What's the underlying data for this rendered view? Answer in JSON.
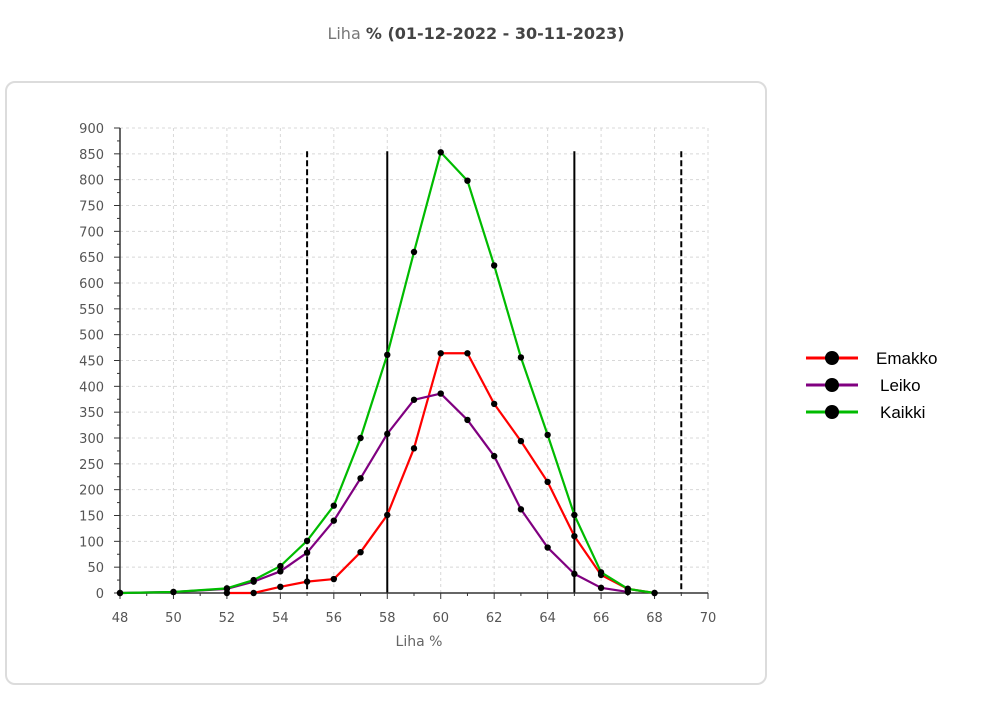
{
  "header": {
    "title_prefix": "Liha",
    "title_rest": "% (01-12-2022 - 30-11-2023)"
  },
  "chart_data": {
    "type": "line",
    "xlabel": "Liha %",
    "ylabel": "",
    "xlim": [
      48,
      70
    ],
    "ylim": [
      0,
      900
    ],
    "x_ticks": [
      48,
      50,
      52,
      54,
      56,
      58,
      60,
      62,
      64,
      66,
      68,
      70
    ],
    "y_ticks": [
      0,
      50,
      100,
      150,
      200,
      250,
      300,
      350,
      400,
      450,
      500,
      550,
      600,
      650,
      700,
      750,
      800,
      850,
      900
    ],
    "grid": true,
    "legend_position": "right",
    "reference_lines": [
      {
        "x": 55,
        "style": "dashed"
      },
      {
        "x": 58,
        "style": "solid"
      },
      {
        "x": 65,
        "style": "solid"
      },
      {
        "x": 69,
        "style": "dashed"
      }
    ],
    "series": [
      {
        "name": "Emakko",
        "color": "#ff0000",
        "x": [
          52,
          53,
          54,
          55,
          56,
          57,
          58,
          59,
          60,
          61,
          62,
          63,
          64,
          65,
          66,
          67,
          68
        ],
        "values": [
          0,
          0,
          12,
          22,
          27,
          79,
          151,
          280,
          464,
          464,
          366,
          294,
          215,
          110,
          35,
          8,
          0
        ]
      },
      {
        "name": "Leiko",
        "color": "#800080",
        "x": [
          48,
          50,
          52,
          53,
          54,
          55,
          56,
          57,
          58,
          59,
          60,
          61,
          62,
          63,
          64,
          65,
          66,
          67
        ],
        "values": [
          0,
          2,
          8,
          22,
          42,
          78,
          140,
          222,
          308,
          374,
          386,
          335,
          265,
          162,
          88,
          37,
          10,
          2
        ]
      },
      {
        "name": "Kaikki",
        "color": "#00bb00",
        "x": [
          48,
          50,
          52,
          53,
          54,
          55,
          56,
          57,
          58,
          59,
          60,
          61,
          62,
          63,
          64,
          65,
          66,
          67,
          68
        ],
        "values": [
          0,
          2,
          9,
          25,
          52,
          101,
          169,
          300,
          461,
          660,
          853,
          798,
          634,
          456,
          306,
          151,
          40,
          8,
          0
        ]
      }
    ]
  }
}
